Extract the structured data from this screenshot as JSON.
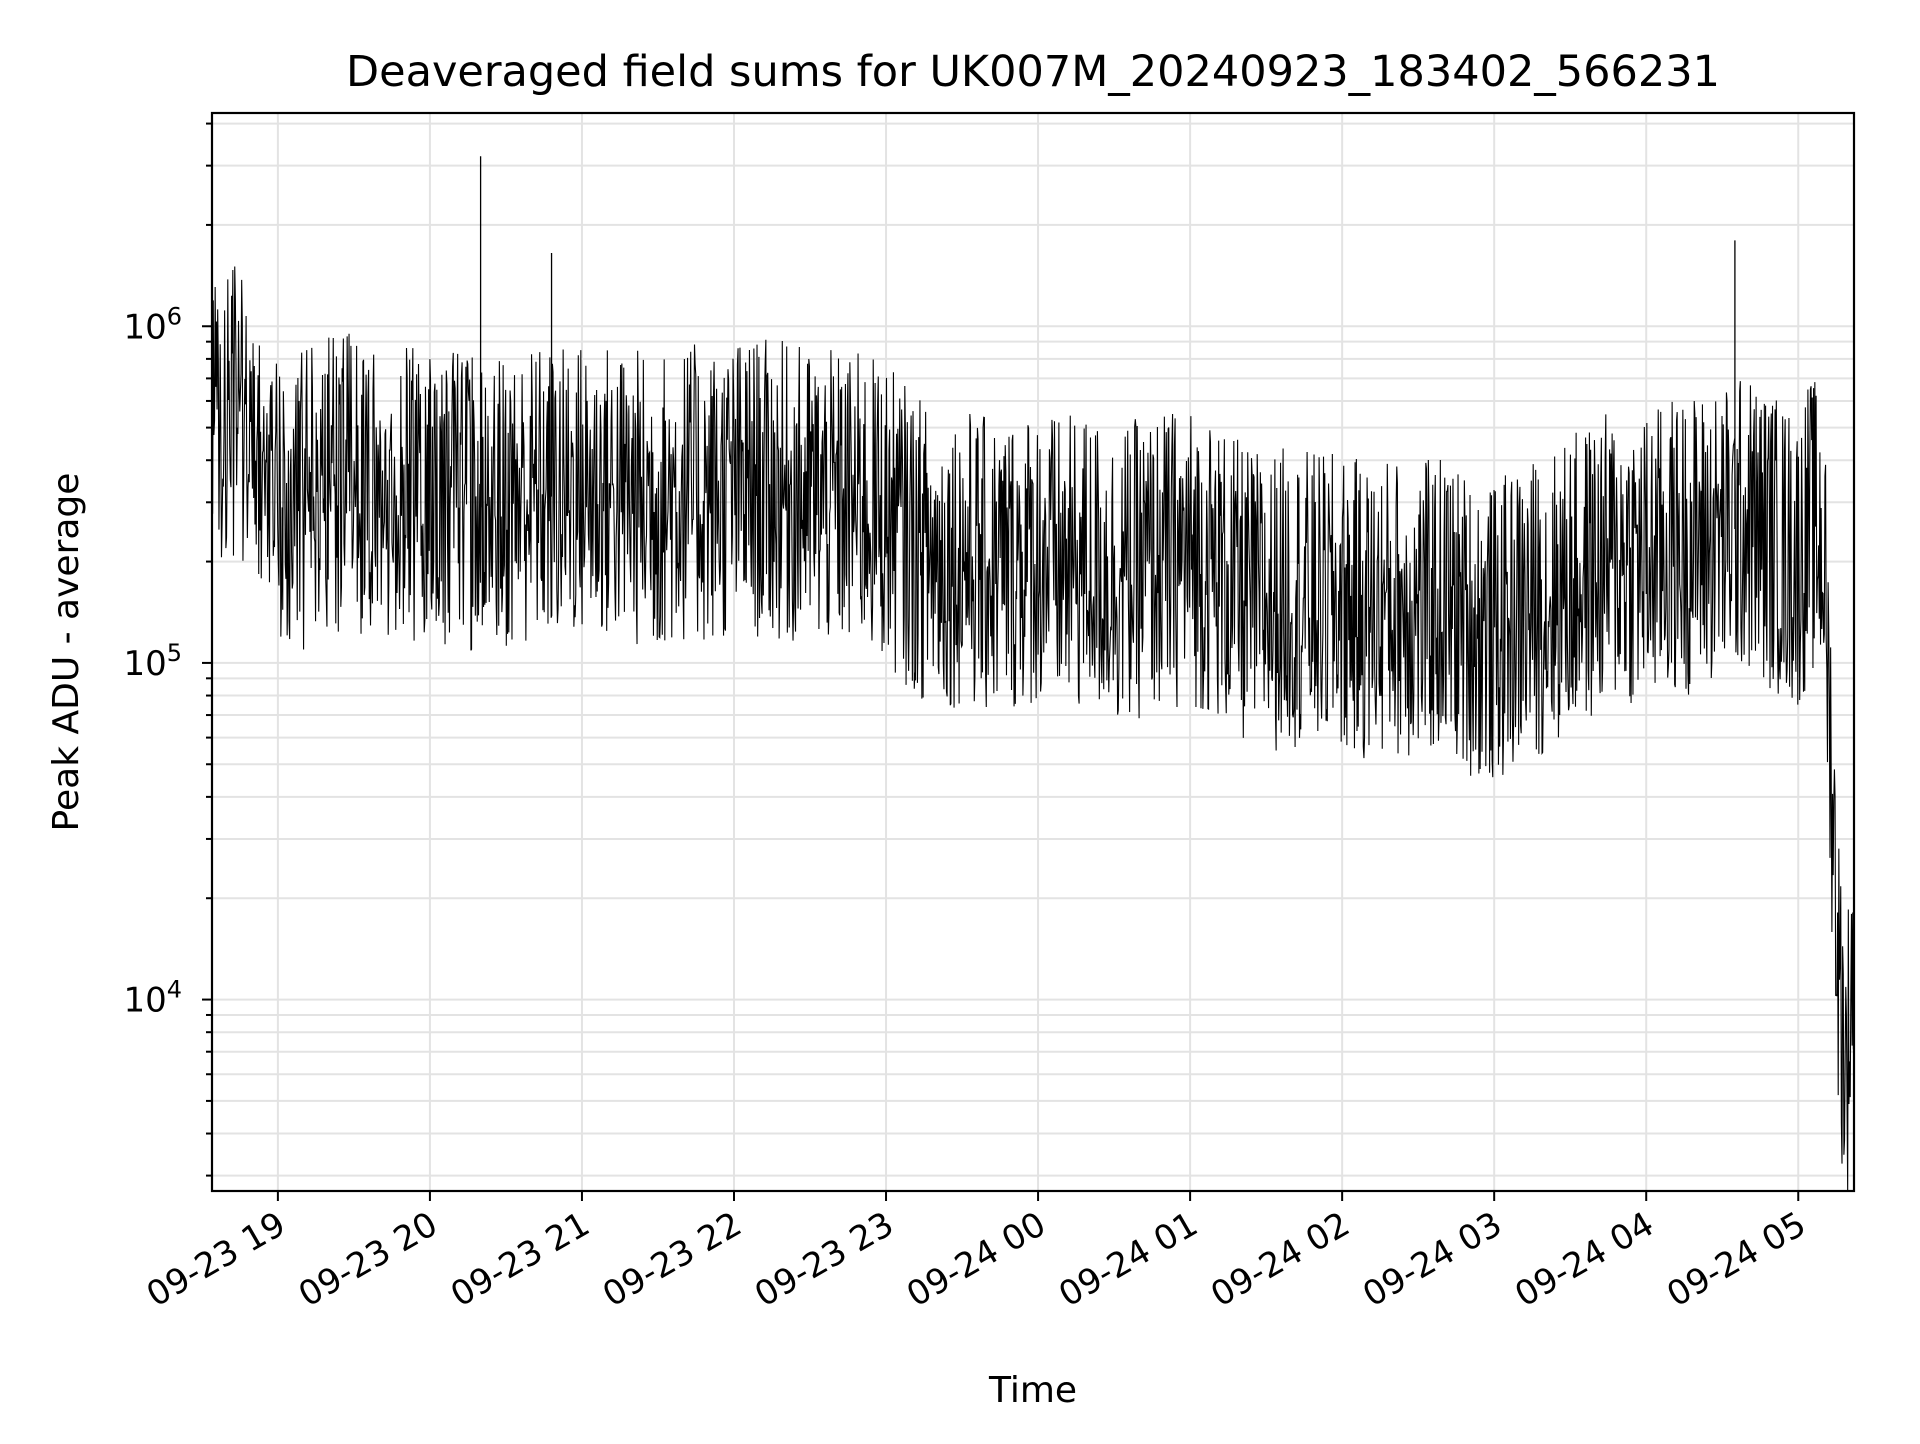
{
  "chart_data": {
    "type": "line",
    "title": "Deaveraged field sums for UK007M_20240923_183402_566231",
    "xlabel": "Time",
    "ylabel": "Peak ADU - average",
    "x_range": [
      "2024-09-23 18:34",
      "2024-09-24 05:22"
    ],
    "xticks": [
      {
        "time": "2024-09-23 19:00",
        "label": "09-23 19"
      },
      {
        "time": "2024-09-23 20:00",
        "label": "09-23 20"
      },
      {
        "time": "2024-09-23 21:00",
        "label": "09-23 21"
      },
      {
        "time": "2024-09-23 22:00",
        "label": "09-23 22"
      },
      {
        "time": "2024-09-23 23:00",
        "label": "09-23 23"
      },
      {
        "time": "2024-09-24 00:00",
        "label": "09-24 00"
      },
      {
        "time": "2024-09-24 01:00",
        "label": "09-24 01"
      },
      {
        "time": "2024-09-24 02:00",
        "label": "09-24 02"
      },
      {
        "time": "2024-09-24 03:00",
        "label": "09-24 03"
      },
      {
        "time": "2024-09-24 04:00",
        "label": "09-24 04"
      },
      {
        "time": "2024-09-24 05:00",
        "label": "09-24 05"
      }
    ],
    "yscale": "log",
    "ylim": [
      2700,
      4300000
    ],
    "yticks": [
      {
        "value": 10000,
        "base": "10",
        "exp": "4"
      },
      {
        "value": 100000,
        "base": "10",
        "exp": "5"
      },
      {
        "value": 1000000,
        "base": "10",
        "exp": "6"
      }
    ],
    "grid": true,
    "legend": "none",
    "line_color": "#000000",
    "grid_color": "#e3e3e3",
    "series": [
      {
        "x": [
          "2024-09-23 18:34",
          "2024-09-23 18:40",
          "2024-09-23 18:50",
          "2024-09-23 19:00",
          "2024-09-23 19:10",
          "2024-09-23 19:20",
          "2024-09-23 19:30",
          "2024-09-23 19:40",
          "2024-09-23 19:50",
          "2024-09-23 20:00",
          "2024-09-23 20:10",
          "2024-09-23 20:20",
          "2024-09-23 20:30",
          "2024-09-23 20:40",
          "2024-09-23 20:50",
          "2024-09-23 21:00",
          "2024-09-23 21:10",
          "2024-09-23 21:20",
          "2024-09-23 21:30",
          "2024-09-23 21:40",
          "2024-09-23 21:50",
          "2024-09-23 22:00",
          "2024-09-23 22:10",
          "2024-09-23 22:20",
          "2024-09-23 22:30",
          "2024-09-23 22:40",
          "2024-09-23 22:50",
          "2024-09-23 23:00",
          "2024-09-23 23:10",
          "2024-09-23 23:20",
          "2024-09-23 23:30",
          "2024-09-23 23:40",
          "2024-09-23 23:50",
          "2024-09-24 00:00",
          "2024-09-24 00:10",
          "2024-09-24 00:20",
          "2024-09-24 00:30",
          "2024-09-24 00:40",
          "2024-09-24 00:50",
          "2024-09-24 01:00",
          "2024-09-24 01:10",
          "2024-09-24 01:20",
          "2024-09-24 01:30",
          "2024-09-24 01:40",
          "2024-09-24 01:50",
          "2024-09-24 02:00",
          "2024-09-24 02:10",
          "2024-09-24 02:20",
          "2024-09-24 02:30",
          "2024-09-24 02:40",
          "2024-09-24 02:50",
          "2024-09-24 03:00",
          "2024-09-24 03:10",
          "2024-09-24 03:20",
          "2024-09-24 03:30",
          "2024-09-24 03:40",
          "2024-09-24 03:50",
          "2024-09-24 04:00",
          "2024-09-24 04:10",
          "2024-09-24 04:20",
          "2024-09-24 04:30",
          "2024-09-24 04:40",
          "2024-09-24 04:50",
          "2024-09-24 05:00",
          "2024-09-24 05:05",
          "2024-09-24 05:10",
          "2024-09-24 05:13",
          "2024-09-24 05:16",
          "2024-09-24 05:19",
          "2024-09-24 05:22"
        ],
        "y": [
          520000,
          600000,
          420000,
          310000,
          300000,
          330000,
          340000,
          280000,
          320000,
          330000,
          310000,
          290000,
          300000,
          320000,
          310000,
          330000,
          320000,
          310000,
          300000,
          320000,
          310000,
          330000,
          330000,
          320000,
          310000,
          300000,
          300000,
          280000,
          230000,
          200000,
          210000,
          190000,
          200000,
          210000,
          190000,
          200000,
          180000,
          190000,
          200000,
          210000,
          190000,
          160000,
          150000,
          160000,
          150000,
          150000,
          140000,
          150000,
          140000,
          150000,
          130000,
          120000,
          140000,
          150000,
          170000,
          190000,
          210000,
          200000,
          220000,
          230000,
          240000,
          260000,
          230000,
          200000,
          260000,
          220000,
          50000,
          12000,
          6000,
          15000
        ]
      }
    ],
    "notable_peaks": [
      {
        "x": "2024-09-23 20:20",
        "y": 3200000
      },
      {
        "x": "2024-09-24 04:35",
        "y": 1800000
      },
      {
        "x": "2024-09-23 20:48",
        "y": 1650000
      }
    ]
  }
}
